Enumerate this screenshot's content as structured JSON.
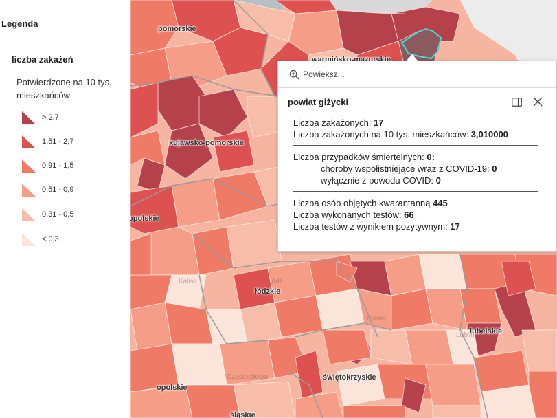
{
  "legend": {
    "title": "Legenda",
    "layer_name": "liczba zakażeń",
    "field_name": "Potwierdzone na 10 tys. mieszkańców",
    "classes": [
      {
        "label": "> 2,7",
        "color": "#b5414b"
      },
      {
        "label": "1,51 - 2,7",
        "color": "#dd5150"
      },
      {
        "label": "0,91 - 1,5",
        "color": "#ef7a66"
      },
      {
        "label": "0,51 - 0,9",
        "color": "#f59d87"
      },
      {
        "label": "0,31 - 0,5",
        "color": "#f8bda9"
      },
      {
        "label": "< 0,3",
        "color": "#fbe4da"
      }
    ]
  },
  "map": {
    "region_labels": [
      "pomorskie",
      "warmińsko-mazurskie",
      "kujawsko-pomorskie",
      "opolskie",
      "łódzkie",
      "lubelskie",
      "świętokrzyskie",
      "opolskie",
      "śląskie"
    ],
    "faint_labels": [
      "Kalisz",
      "Łódź",
      "Radom",
      "Częstochowa",
      "Lublin"
    ],
    "highlight_color": "#4fd6d0"
  },
  "popup": {
    "zoom_label": "Powiększ...",
    "title": "powiat giżycki",
    "stats": {
      "infected_label": "Liczba zakażonych: ",
      "infected_value": "17",
      "per10k_label": "Liczba zakażonych na 10 tys. mieszkańców: ",
      "per10k_value": "3,010000",
      "deaths_label": "Liczba przypadków śmiertelnych: ",
      "deaths_value": "0:",
      "comorbid_label": "choroby współistniejące wraz z COVID-19: ",
      "comorbid_value": "0",
      "covid_only_label": "wyłącznie z powodu COVID: ",
      "covid_only_value": "0",
      "quarantine_label": "Liczba osób objętych kwarantanną ",
      "quarantine_value": "445",
      "tests_label": "Liczba wykonanych testów: ",
      "tests_value": "66",
      "positive_label": "Liczba testów z wynikiem pozytywnym: ",
      "positive_value": "17"
    }
  }
}
